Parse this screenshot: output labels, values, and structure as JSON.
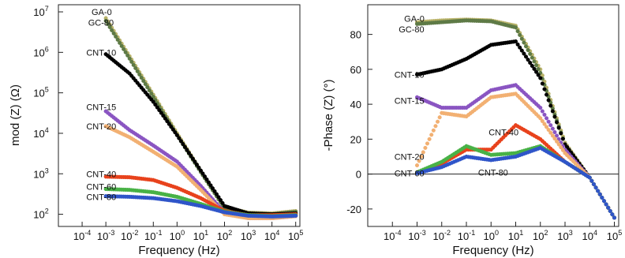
{
  "colors": {
    "GA-0": "#b9b36a",
    "GC-80": "#5e7a46",
    "CNT-10": "#000000",
    "CNT-15": "#8a55c2",
    "CNT-20": "#f2b072",
    "CNT-40": "#e8421c",
    "CNT-60": "#48b246",
    "CNT-80": "#2f55c9"
  },
  "chart_data": [
    {
      "type": "scatter",
      "panel": "left",
      "xlabel": "Frequency (Hz)",
      "ylabel": "mod (Z) (Ω)",
      "xscale": "log",
      "yscale": "log",
      "xlim": [
        1e-05,
        150000
      ],
      "ylim": [
        50,
        15000000
      ],
      "xticks": [
        {
          "v": 0.0001,
          "b": "10",
          "e": "-4"
        },
        {
          "v": 0.001,
          "b": "10",
          "e": "-3"
        },
        {
          "v": 0.01,
          "b": "10",
          "e": "-2"
        },
        {
          "v": 0.1,
          "b": "10",
          "e": "-1"
        },
        {
          "v": 1,
          "b": "10",
          "e": "0"
        },
        {
          "v": 10,
          "b": "10",
          "e": "1"
        },
        {
          "v": 100,
          "b": "10",
          "e": "2"
        },
        {
          "v": 1000,
          "b": "10",
          "e": "3"
        },
        {
          "v": 10000,
          "b": "10",
          "e": "4"
        },
        {
          "v": 100000,
          "b": "10",
          "e": "5"
        }
      ],
      "yticks": [
        {
          "v": 100,
          "b": "10",
          "e": "2"
        },
        {
          "v": 1000,
          "b": "10",
          "e": "3"
        },
        {
          "v": 10000,
          "b": "10",
          "e": "4"
        },
        {
          "v": 100000,
          "b": "10",
          "e": "5"
        },
        {
          "v": 1000000,
          "b": "10",
          "e": "6"
        },
        {
          "v": 10000000,
          "b": "10",
          "e": "7"
        }
      ],
      "series": [
        {
          "name": "GA-0",
          "x": [
            0.001,
            0.01,
            0.1,
            1,
            10,
            100,
            1000,
            10000,
            100000
          ],
          "y": [
            7000000,
            800000,
            90000,
            10000,
            1200,
            150,
            110,
            105,
            120
          ]
        },
        {
          "name": "GC-80",
          "x": [
            0.001,
            0.01,
            0.1,
            1,
            10,
            100,
            1000,
            10000,
            100000
          ],
          "y": [
            6000000,
            700000,
            80000,
            9000,
            1100,
            140,
            105,
            100,
            115
          ]
        },
        {
          "name": "CNT-10",
          "x": [
            0.001,
            0.01,
            0.1,
            1,
            10,
            100,
            1000,
            10000,
            100000
          ],
          "y": [
            900000,
            300000,
            60000,
            9000,
            1200,
            160,
            105,
            100,
            105
          ]
        },
        {
          "name": "CNT-15",
          "x": [
            0.001,
            0.01,
            0.1,
            1,
            10,
            100,
            1000,
            10000,
            100000
          ],
          "y": [
            35000,
            12000,
            5000,
            2000,
            500,
            110,
            80,
            80,
            90
          ]
        },
        {
          "name": "CNT-20",
          "x": [
            0.001,
            0.01,
            0.1,
            1,
            10,
            100,
            1000,
            10000,
            100000
          ],
          "y": [
            15000,
            8000,
            3500,
            1500,
            400,
            100,
            80,
            80,
            90
          ]
        },
        {
          "name": "CNT-40",
          "x": [
            0.001,
            0.01,
            0.1,
            1,
            10,
            100,
            1000,
            10000,
            100000
          ],
          "y": [
            850,
            820,
            700,
            450,
            250,
            120,
            95,
            95,
            100
          ]
        },
        {
          "name": "CNT-60",
          "x": [
            0.001,
            0.01,
            0.1,
            1,
            10,
            100,
            1000,
            10000,
            100000
          ],
          "y": [
            420,
            400,
            350,
            270,
            180,
            115,
            95,
            90,
            95
          ]
        },
        {
          "name": "CNT-80",
          "x": [
            0.001,
            0.01,
            0.1,
            1,
            10,
            100,
            1000,
            10000,
            100000
          ],
          "y": [
            280,
            270,
            250,
            210,
            160,
            112,
            92,
            88,
            92
          ]
        }
      ],
      "labels": [
        {
          "text": "GA-0",
          "x": 0.00025,
          "y": 10000000
        },
        {
          "text": "GC-80",
          "x": 0.00018,
          "y": 5500000
        },
        {
          "text": "CNT-10",
          "x": 0.00015,
          "y": 1000000
        },
        {
          "text": "CNT-15",
          "x": 0.00015,
          "y": 45000
        },
        {
          "text": "CNT-20",
          "x": 0.00015,
          "y": 15000
        },
        {
          "text": "CNT-40",
          "x": 0.00015,
          "y": 1000
        },
        {
          "text": "CNT-60",
          "x": 0.00015,
          "y": 480
        },
        {
          "text": "CNT-80",
          "x": 0.00015,
          "y": 270
        }
      ]
    },
    {
      "type": "scatter",
      "panel": "right",
      "xlabel": "Frequency (Hz)",
      "ylabel": "-Phase (Z) (°)",
      "xscale": "log",
      "yscale": "linear",
      "xlim": [
        1e-05,
        150000
      ],
      "ylim": [
        -30,
        97
      ],
      "hline": 0,
      "xticks": [
        {
          "v": 0.0001,
          "b": "10",
          "e": "-4"
        },
        {
          "v": 0.001,
          "b": "10",
          "e": "-3"
        },
        {
          "v": 0.01,
          "b": "10",
          "e": "-2"
        },
        {
          "v": 0.1,
          "b": "10",
          "e": "-1"
        },
        {
          "v": 1,
          "b": "10",
          "e": "0"
        },
        {
          "v": 10,
          "b": "10",
          "e": "1"
        },
        {
          "v": 100,
          "b": "10",
          "e": "2"
        },
        {
          "v": 1000,
          "b": "10",
          "e": "3"
        },
        {
          "v": 10000,
          "b": "10",
          "e": "4"
        },
        {
          "v": 100000,
          "b": "10",
          "e": "5"
        }
      ],
      "yticks": [
        {
          "v": -20,
          "t": "-20"
        },
        {
          "v": 0,
          "t": "0"
        },
        {
          "v": 20,
          "t": "20"
        },
        {
          "v": 40,
          "t": "40"
        },
        {
          "v": 60,
          "t": "60"
        },
        {
          "v": 80,
          "t": "80"
        }
      ],
      "series": [
        {
          "name": "GA-0",
          "x": [
            0.001,
            0.01,
            0.1,
            1,
            10,
            100,
            1000,
            10000,
            100000
          ],
          "y": [
            87,
            88,
            88.5,
            88,
            85,
            60,
            18,
            -2,
            -25
          ]
        },
        {
          "name": "GC-80",
          "x": [
            0.001,
            0.01,
            0.1,
            1,
            10,
            100,
            1000,
            10000,
            100000
          ],
          "y": [
            86,
            87,
            88,
            87.5,
            84,
            58,
            17,
            -2,
            -25
          ]
        },
        {
          "name": "CNT-10",
          "x": [
            0.001,
            0.01,
            0.1,
            1,
            10,
            100,
            1000,
            10000,
            100000
          ],
          "y": [
            57,
            60,
            66,
            74,
            76,
            55,
            17,
            -2,
            -25
          ]
        },
        {
          "name": "CNT-15",
          "x": [
            0.001,
            0.01,
            0.1,
            1,
            10,
            100,
            1000,
            10000,
            100000
          ],
          "y": [
            44,
            38,
            38,
            48,
            51,
            38,
            14,
            -2,
            -25
          ]
        },
        {
          "name": "CNT-20",
          "x": [
            0.001,
            0.01,
            0.1,
            1,
            10,
            100,
            1000,
            10000,
            100000
          ],
          "y": [
            5,
            35,
            33,
            44,
            46,
            32,
            12,
            -2,
            -25
          ]
        },
        {
          "name": "CNT-40",
          "x": [
            0.001,
            0.01,
            0.1,
            1,
            10,
            100,
            1000,
            10000,
            100000
          ],
          "y": [
            1,
            6,
            14,
            14,
            28,
            20,
            7,
            -2,
            -25
          ]
        },
        {
          "name": "CNT-60",
          "x": [
            0.001,
            0.01,
            0.1,
            1,
            10,
            100,
            1000,
            10000,
            100000
          ],
          "y": [
            1,
            7,
            16,
            11,
            12,
            16,
            7,
            -2,
            -25
          ]
        },
        {
          "name": "CNT-80",
          "x": [
            0.001,
            0.01,
            0.1,
            1,
            10,
            100,
            1000,
            10000,
            100000
          ],
          "y": [
            0.5,
            4,
            10,
            8,
            10,
            15,
            7,
            -2,
            -25
          ]
        }
      ],
      "labels": [
        {
          "text": "GA-0",
          "x": 0.0003,
          "y": 89
        },
        {
          "text": "GC-80",
          "x": 0.00018,
          "y": 83
        },
        {
          "text": "CNT-10",
          "x": 0.00012,
          "y": 57
        },
        {
          "text": "CNT-15",
          "x": 0.00012,
          "y": 42
        },
        {
          "text": "CNT-20",
          "x": 0.00012,
          "y": 10
        },
        {
          "text": "CNT-40",
          "x": 0.8,
          "y": 24
        },
        {
          "text": "CNT-60",
          "x": 0.00012,
          "y": 0.5
        },
        {
          "text": "CNT-80",
          "x": 0.3,
          "y": 1
        }
      ]
    }
  ]
}
